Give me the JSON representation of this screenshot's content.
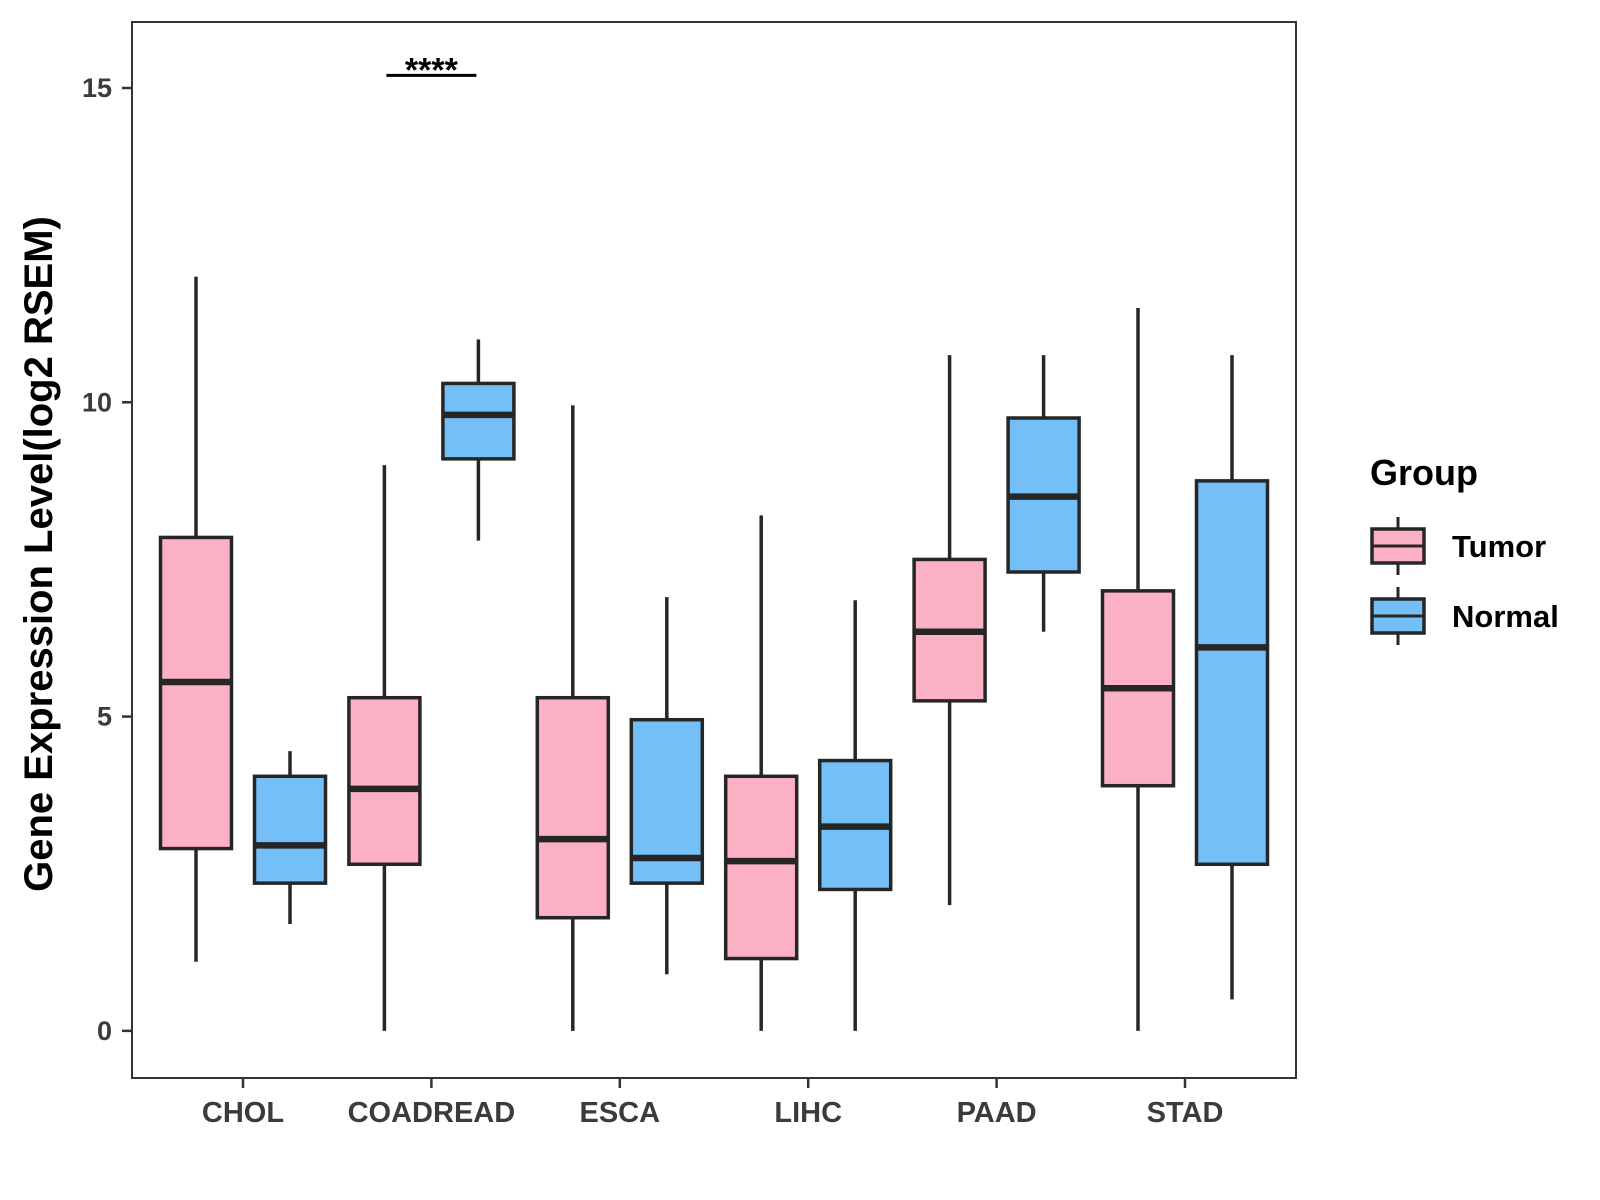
{
  "chart_data": {
    "type": "boxplot",
    "title": "",
    "xlabel": "",
    "ylabel": "Gene Expression Level(log2 RSEM)",
    "ylim": [
      -0.75,
      16.05
    ],
    "yticks": [
      0,
      5,
      10,
      15
    ],
    "categories": [
      "CHOL",
      "COADREAD",
      "ESCA",
      "LIHC",
      "PAAD",
      "STAD"
    ],
    "legend": {
      "title": "Group",
      "position": "right",
      "entries": [
        {
          "name": "Tumor",
          "color": "#FBB1C3"
        },
        {
          "name": "Normal",
          "color": "#74BFF7"
        }
      ]
    },
    "series": [
      {
        "name": "Tumor",
        "color": "#FBB1C3",
        "boxes": [
          {
            "whisker_low": 1.1,
            "q1": 2.9,
            "median": 5.55,
            "q3": 7.85,
            "whisker_high": 12.0
          },
          {
            "whisker_low": 0.0,
            "q1": 2.65,
            "median": 3.85,
            "q3": 5.3,
            "whisker_high": 9.0
          },
          {
            "whisker_low": 0.0,
            "q1": 1.8,
            "median": 3.05,
            "q3": 5.3,
            "whisker_high": 9.95
          },
          {
            "whisker_low": 0.0,
            "q1": 1.15,
            "median": 2.7,
            "q3": 4.05,
            "whisker_high": 8.2
          },
          {
            "whisker_low": 2.0,
            "q1": 5.25,
            "median": 6.35,
            "q3": 7.5,
            "whisker_high": 10.75
          },
          {
            "whisker_low": 0.0,
            "q1": 3.9,
            "median": 5.45,
            "q3": 7.0,
            "whisker_high": 11.5
          }
        ]
      },
      {
        "name": "Normal",
        "color": "#74BFF7",
        "boxes": [
          {
            "whisker_low": 1.7,
            "q1": 2.35,
            "median": 2.95,
            "q3": 4.05,
            "whisker_high": 4.45
          },
          {
            "whisker_low": 7.8,
            "q1": 9.1,
            "median": 9.8,
            "q3": 10.3,
            "whisker_high": 11.0
          },
          {
            "whisker_low": 0.9,
            "q1": 2.35,
            "median": 2.75,
            "q3": 4.95,
            "whisker_high": 6.9
          },
          {
            "whisker_low": 0.0,
            "q1": 2.25,
            "median": 3.25,
            "q3": 4.3,
            "whisker_high": 6.85
          },
          {
            "whisker_low": 6.35,
            "q1": 7.3,
            "median": 8.5,
            "q3": 9.75,
            "whisker_high": 10.75
          },
          {
            "whisker_low": 0.5,
            "q1": 2.65,
            "median": 6.1,
            "q3": 8.75,
            "whisker_high": 10.75
          }
        ]
      }
    ],
    "annotations": [
      {
        "category": "COADREAD",
        "text": "****",
        "y": 15.2
      }
    ]
  }
}
